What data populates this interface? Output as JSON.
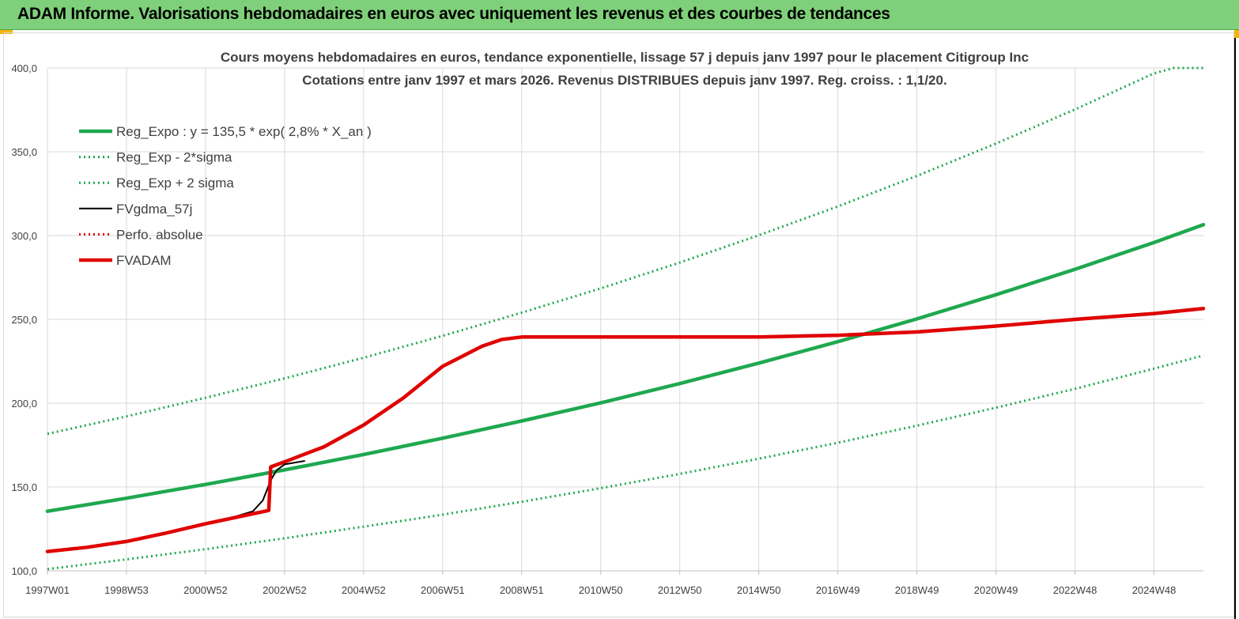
{
  "banner": {
    "title": "ADAM Informe. Valorisations hebdomadaires en euros avec uniquement les revenus et des courbes de tendances"
  },
  "chart_data": {
    "type": "line",
    "title": "Cours moyens hebdomadaires en euros, tendance exponentielle, lissage 57 j depuis janv 1997 pour le placement Citigroup Inc",
    "subtitle": "Cotations entre janv 1997 et mars 2026. Revenus DISTRIBUES depuis janv 1997. Reg. croiss. : 1,1/20.",
    "xlabel": "",
    "ylabel": "",
    "ylim": [
      100,
      400
    ],
    "yticks": [
      "100,0",
      "150,0",
      "200,0",
      "250,0",
      "300,0",
      "350,0",
      "400,0"
    ],
    "ytick_values": [
      100,
      150,
      200,
      250,
      300,
      350,
      400
    ],
    "xticks": [
      "1997W01",
      "1998W53",
      "2000W52",
      "2002W52",
      "2004W52",
      "2006W51",
      "2008W51",
      "2010W50",
      "2012W50",
      "2014W50",
      "2016W49",
      "2018W49",
      "2020W49",
      "2022W48",
      "2024W48"
    ],
    "xtick_years": [
      1997.0,
      1999.0,
      2001.0,
      2003.0,
      2005.0,
      2007.0,
      2009.0,
      2011.0,
      2013.0,
      2015.0,
      2017.0,
      2019.0,
      2021.0,
      2023.0,
      2025.0
    ],
    "xlim": [
      1997.0,
      2026.25
    ],
    "grid": true,
    "legend_position": "top-left",
    "series": [
      {
        "name": "Reg_Expo : y = 135,5 * exp( 2,8% *  X_an )",
        "color": "#1fa84f",
        "style": "solid-thick",
        "x": [
          1997,
          1999,
          2001,
          2003,
          2005,
          2007,
          2009,
          2011,
          2013,
          2015,
          2017,
          2019,
          2021,
          2023,
          2025,
          2026.25
        ],
        "y": [
          135.5,
          143.3,
          151.5,
          160.2,
          169.4,
          179.1,
          189.4,
          200.2,
          211.7,
          223.9,
          236.7,
          250.3,
          264.7,
          279.9,
          295.9,
          306.5
        ]
      },
      {
        "name": "Reg_Exp - 2*sigma",
        "color": "#1fa84f",
        "style": "dotted",
        "x": [
          1997,
          1999,
          2001,
          2003,
          2005,
          2007,
          2009,
          2011,
          2013,
          2015,
          2017,
          2019,
          2021,
          2023,
          2025,
          2026.25
        ],
        "y": [
          101.0,
          106.8,
          112.9,
          119.4,
          126.3,
          133.5,
          141.2,
          149.3,
          157.8,
          166.9,
          176.4,
          186.6,
          197.3,
          208.6,
          220.6,
          228.5
        ]
      },
      {
        "name": "Reg_Exp + 2 sigma",
        "color": "#1fa84f",
        "style": "dotted",
        "x": [
          1997,
          1999,
          2001,
          2003,
          2005,
          2007,
          2009,
          2011,
          2013,
          2015,
          2017,
          2019,
          2021,
          2023,
          2025,
          2025.5,
          2026.25
        ],
        "y": [
          181.7,
          192.1,
          203.2,
          214.8,
          227.1,
          240.2,
          254.0,
          268.5,
          283.9,
          300.2,
          317.4,
          335.6,
          354.9,
          375.3,
          396.8,
          400.0,
          400.0
        ]
      },
      {
        "name": "FVgdma_57j",
        "color": "#000000",
        "style": "solid",
        "x": [
          1997,
          1998,
          1999,
          2000,
          2001,
          2001.7,
          2002.2,
          2002.45,
          2002.65,
          2002.8,
          2003.0,
          2003.5
        ],
        "y": [
          111.5,
          114.0,
          117.5,
          122.5,
          128.0,
          132.0,
          135.5,
          142.0,
          154.0,
          160.0,
          163.5,
          165.5
        ]
      },
      {
        "name": "Perfo. absolue",
        "color": "#e00000",
        "style": "dotted",
        "x": [
          1997,
          1998,
          1999,
          2000,
          2001,
          2002,
          2002.6,
          2002.65,
          2003,
          2004,
          2005,
          2006,
          2007,
          2008,
          2008.5,
          2009,
          2012,
          2015,
          2017,
          2019,
          2021,
          2023,
          2025,
          2026.25
        ],
        "y": [
          111.5,
          114.0,
          117.5,
          122.5,
          128.0,
          133.0,
          136.0,
          162.0,
          165.0,
          174.0,
          187.0,
          203.0,
          222.0,
          234.0,
          238.0,
          239.5,
          239.5,
          239.5,
          240.5,
          242.5,
          246.0,
          250.0,
          253.5,
          256.5
        ]
      },
      {
        "name": "FVADAM",
        "color": "#e00000",
        "style": "solid-thick",
        "x": [
          1997,
          1998,
          1999,
          2000,
          2001,
          2002,
          2002.6,
          2002.65,
          2003,
          2004,
          2005,
          2006,
          2007,
          2008,
          2008.5,
          2009,
          2012,
          2015,
          2017,
          2019,
          2021,
          2023,
          2025,
          2026.25
        ],
        "y": [
          111.5,
          114.0,
          117.5,
          122.5,
          128.0,
          133.0,
          136.0,
          162.0,
          165.0,
          174.0,
          187.0,
          203.0,
          222.0,
          234.0,
          238.0,
          239.5,
          239.5,
          239.5,
          240.5,
          242.5,
          246.0,
          250.0,
          253.5,
          256.5
        ]
      }
    ]
  }
}
